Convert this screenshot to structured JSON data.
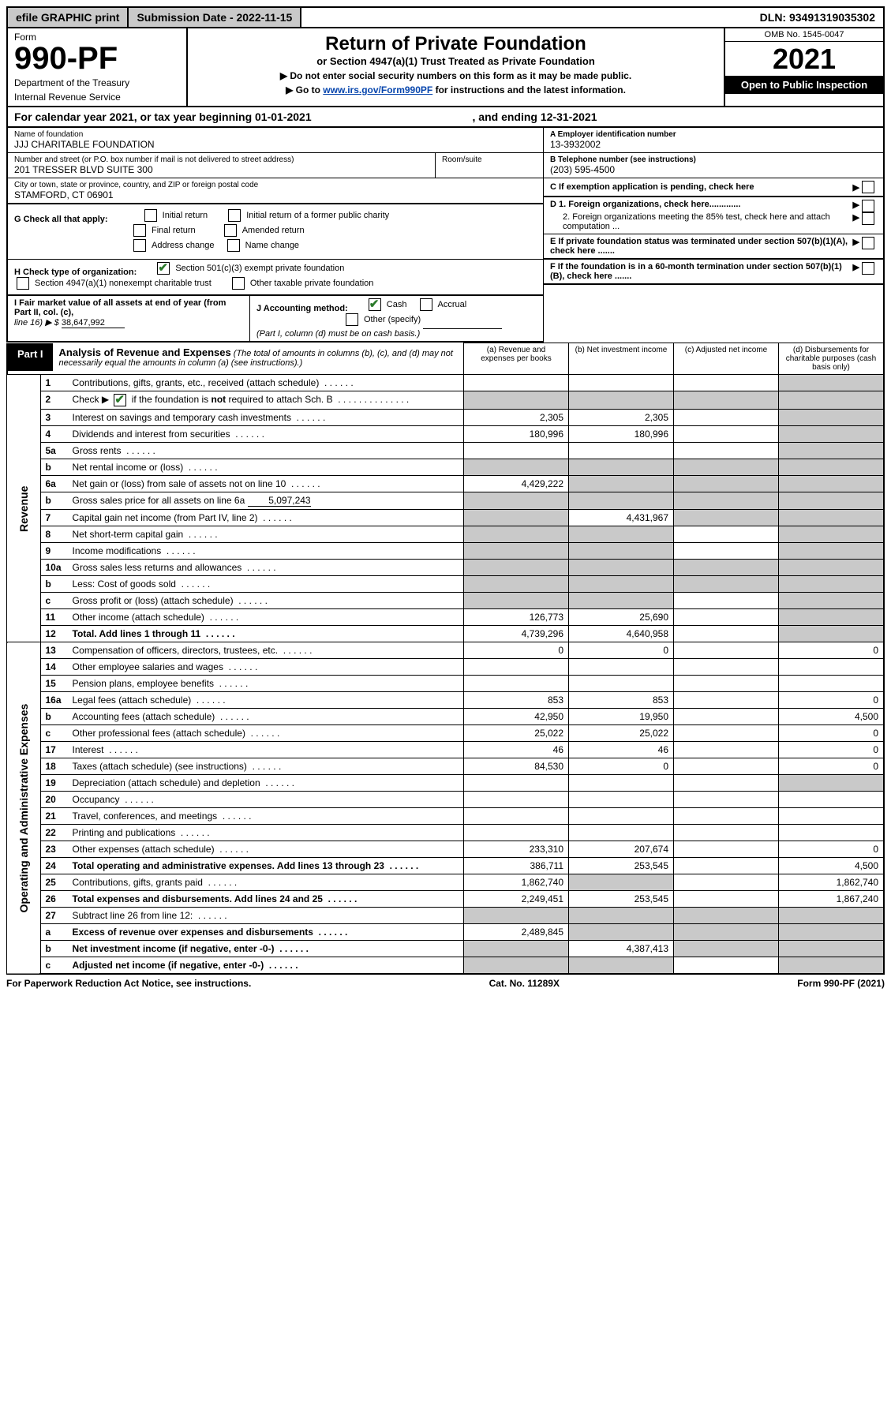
{
  "topbar": {
    "efile": "efile GRAPHIC print",
    "submission": "Submission Date - 2022-11-15",
    "dln": "DLN: 93491319035302"
  },
  "header": {
    "form_word": "Form",
    "form_num": "990-PF",
    "dept": "Department of the Treasury",
    "irs": "Internal Revenue Service",
    "title": "Return of Private Foundation",
    "subtitle": "or Section 4947(a)(1) Trust Treated as Private Foundation",
    "note1": "▶ Do not enter social security numbers on this form as it may be made public.",
    "note2_pre": "▶ Go to ",
    "note2_link": "www.irs.gov/Form990PF",
    "note2_post": " for instructions and the latest information.",
    "omb": "OMB No. 1545-0047",
    "year": "2021",
    "open": "Open to Public Inspection"
  },
  "calyear": {
    "text_pre": "For calendar year 2021, or tax year beginning ",
    "begin": "01-01-2021",
    "mid": " , and ending ",
    "end": "12-31-2021"
  },
  "info": {
    "name_label": "Name of foundation",
    "name": "JJJ CHARITABLE FOUNDATION",
    "addr_label": "Number and street (or P.O. box number if mail is not delivered to street address)",
    "addr": "201 TRESSER BLVD SUITE 300",
    "room_label": "Room/suite",
    "city_label": "City or town, state or province, country, and ZIP or foreign postal code",
    "city": "STAMFORD, CT  06901",
    "a_label": "A Employer identification number",
    "a_val": "13-3932002",
    "b_label": "B Telephone number (see instructions)",
    "b_val": "(203) 595-4500",
    "c_label": "C If exemption application is pending, check here",
    "d1": "D 1. Foreign organizations, check here.............",
    "d2": "2. Foreign organizations meeting the 85% test, check here and attach computation ...",
    "e_label": "E   If private foundation status was terminated under section 507(b)(1)(A), check here .......",
    "f_label": "F   If the foundation is in a 60-month termination under section 507(b)(1)(B), check here .......",
    "g_label": "G Check all that apply:",
    "g_opts": [
      "Initial return",
      "Initial return of a former public charity",
      "Final return",
      "Amended return",
      "Address change",
      "Name change"
    ],
    "h_label": "H Check type of organization:",
    "h_opt1": "Section 501(c)(3) exempt private foundation",
    "h_opt2": "Section 4947(a)(1) nonexempt charitable trust",
    "h_opt3": "Other taxable private foundation",
    "i_label": "I Fair market value of all assets at end of year (from Part II, col. (c),",
    "i_line": "line 16) ▶ $",
    "i_val": "38,647,992",
    "j_label": "J Accounting method:",
    "j_cash": "Cash",
    "j_accrual": "Accrual",
    "j_other": "Other (specify)",
    "j_note": "(Part I, column (d) must be on cash basis.)"
  },
  "part1": {
    "label": "Part I",
    "title": "Analysis of Revenue and Expenses",
    "title_note": "(The total of amounts in columns (b), (c), and (d) may not necessarily equal the amounts in column (a) (see instructions).)",
    "cols": {
      "a": "(a)   Revenue and expenses per books",
      "b": "(b)   Net investment income",
      "c": "(c)   Adjusted net income",
      "d": "(d)   Disbursements for charitable purposes (cash basis only)"
    }
  },
  "sides": {
    "revenue": "Revenue",
    "expenses": "Operating and Administrative Expenses"
  },
  "rows": [
    {
      "n": "1",
      "desc": "Contributions, gifts, grants, etc., received (attach schedule)",
      "a": "",
      "b": "",
      "c": "",
      "d": "shaded"
    },
    {
      "n": "2",
      "desc": "Check ▶ ☑ if the foundation is not required to attach Sch. B",
      "dotfill": true,
      "a": "shaded",
      "b": "shaded",
      "c": "shaded",
      "d": "shaded",
      "raw": true
    },
    {
      "n": "3",
      "desc": "Interest on savings and temporary cash investments",
      "a": "2,305",
      "b": "2,305",
      "c": "",
      "d": "shaded"
    },
    {
      "n": "4",
      "desc": "Dividends and interest from securities",
      "a": "180,996",
      "b": "180,996",
      "c": "",
      "d": "shaded"
    },
    {
      "n": "5a",
      "desc": "Gross rents",
      "a": "",
      "b": "",
      "c": "",
      "d": "shaded"
    },
    {
      "n": "b",
      "desc": "Net rental income or (loss)",
      "a": "shaded",
      "b": "shaded",
      "c": "shaded",
      "d": "shaded"
    },
    {
      "n": "6a",
      "desc": "Net gain or (loss) from sale of assets not on line 10",
      "a": "4,429,222",
      "b": "shaded",
      "c": "shaded",
      "d": "shaded"
    },
    {
      "n": "b",
      "desc": "Gross sales price for all assets on line 6a",
      "inline_val": "5,097,243",
      "a": "shaded",
      "b": "shaded",
      "c": "shaded",
      "d": "shaded"
    },
    {
      "n": "7",
      "desc": "Capital gain net income (from Part IV, line 2)",
      "a": "shaded",
      "b": "4,431,967",
      "c": "shaded",
      "d": "shaded"
    },
    {
      "n": "8",
      "desc": "Net short-term capital gain",
      "a": "shaded",
      "b": "shaded",
      "c": "",
      "d": "shaded"
    },
    {
      "n": "9",
      "desc": "Income modifications",
      "a": "shaded",
      "b": "shaded",
      "c": "",
      "d": "shaded"
    },
    {
      "n": "10a",
      "desc": "Gross sales less returns and allowances",
      "a": "shaded",
      "b": "shaded",
      "c": "shaded",
      "d": "shaded"
    },
    {
      "n": "b",
      "desc": "Less: Cost of goods sold",
      "a": "shaded",
      "b": "shaded",
      "c": "shaded",
      "d": "shaded"
    },
    {
      "n": "c",
      "desc": "Gross profit or (loss) (attach schedule)",
      "a": "shaded",
      "b": "shaded",
      "c": "",
      "d": "shaded"
    },
    {
      "n": "11",
      "desc": "Other income (attach schedule)",
      "a": "126,773",
      "b": "25,690",
      "c": "",
      "d": "shaded"
    },
    {
      "n": "12",
      "desc": "Total. Add lines 1 through 11",
      "bold": true,
      "a": "4,739,296",
      "b": "4,640,958",
      "c": "",
      "d": "shaded"
    },
    {
      "n": "13",
      "desc": "Compensation of officers, directors, trustees, etc.",
      "a": "0",
      "b": "0",
      "c": "",
      "d": "0"
    },
    {
      "n": "14",
      "desc": "Other employee salaries and wages",
      "a": "",
      "b": "",
      "c": "",
      "d": ""
    },
    {
      "n": "15",
      "desc": "Pension plans, employee benefits",
      "a": "",
      "b": "",
      "c": "",
      "d": ""
    },
    {
      "n": "16a",
      "desc": "Legal fees (attach schedule)",
      "a": "853",
      "b": "853",
      "c": "",
      "d": "0"
    },
    {
      "n": "b",
      "desc": "Accounting fees (attach schedule)",
      "a": "42,950",
      "b": "19,950",
      "c": "",
      "d": "4,500"
    },
    {
      "n": "c",
      "desc": "Other professional fees (attach schedule)",
      "a": "25,022",
      "b": "25,022",
      "c": "",
      "d": "0"
    },
    {
      "n": "17",
      "desc": "Interest",
      "a": "46",
      "b": "46",
      "c": "",
      "d": "0"
    },
    {
      "n": "18",
      "desc": "Taxes (attach schedule) (see instructions)",
      "a": "84,530",
      "b": "0",
      "c": "",
      "d": "0"
    },
    {
      "n": "19",
      "desc": "Depreciation (attach schedule) and depletion",
      "a": "",
      "b": "",
      "c": "",
      "d": "shaded"
    },
    {
      "n": "20",
      "desc": "Occupancy",
      "a": "",
      "b": "",
      "c": "",
      "d": ""
    },
    {
      "n": "21",
      "desc": "Travel, conferences, and meetings",
      "a": "",
      "b": "",
      "c": "",
      "d": ""
    },
    {
      "n": "22",
      "desc": "Printing and publications",
      "a": "",
      "b": "",
      "c": "",
      "d": ""
    },
    {
      "n": "23",
      "desc": "Other expenses (attach schedule)",
      "a": "233,310",
      "b": "207,674",
      "c": "",
      "d": "0"
    },
    {
      "n": "24",
      "desc": "Total operating and administrative expenses. Add lines 13 through 23",
      "bold": true,
      "a": "386,711",
      "b": "253,545",
      "c": "",
      "d": "4,500"
    },
    {
      "n": "25",
      "desc": "Contributions, gifts, grants paid",
      "a": "1,862,740",
      "b": "shaded",
      "c": "",
      "d": "1,862,740"
    },
    {
      "n": "26",
      "desc": "Total expenses and disbursements. Add lines 24 and 25",
      "bold": true,
      "a": "2,249,451",
      "b": "253,545",
      "c": "",
      "d": "1,867,240"
    },
    {
      "n": "27",
      "desc": "Subtract line 26 from line 12:",
      "a": "shaded",
      "b": "shaded",
      "c": "shaded",
      "d": "shaded"
    },
    {
      "n": "a",
      "desc": "Excess of revenue over expenses and disbursements",
      "bold": true,
      "a": "2,489,845",
      "b": "shaded",
      "c": "shaded",
      "d": "shaded"
    },
    {
      "n": "b",
      "desc": "Net investment income (if negative, enter -0-)",
      "bold": true,
      "a": "shaded",
      "b": "4,387,413",
      "c": "shaded",
      "d": "shaded"
    },
    {
      "n": "c",
      "desc": "Adjusted net income (if negative, enter -0-)",
      "bold": true,
      "a": "shaded",
      "b": "shaded",
      "c": "",
      "d": "shaded"
    }
  ],
  "footer": {
    "left": "For Paperwork Reduction Act Notice, see instructions.",
    "mid": "Cat. No. 11289X",
    "right": "Form 990-PF (2021)"
  }
}
